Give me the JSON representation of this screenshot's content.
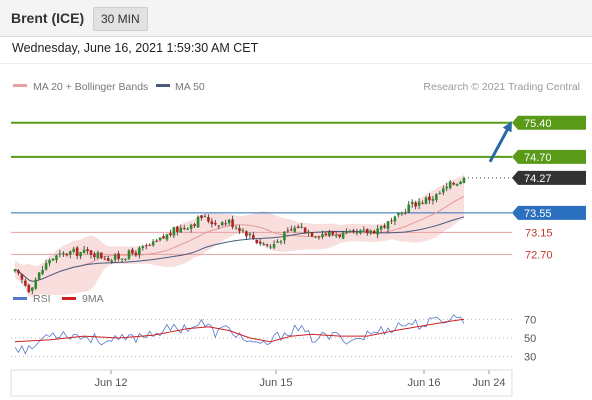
{
  "header": {
    "title": "Brent (ICE)",
    "interval": "30 MIN"
  },
  "datetime": "Wednesday, June 16, 2021 1:59:30 AM CET",
  "chart_data": [
    {
      "type": "candlestick",
      "legend": [
        {
          "label": "MA 20 + Bollinger Bands",
          "color": "#e8a1a1"
        },
        {
          "label": "MA 50",
          "color": "#4a5a7c"
        }
      ],
      "copyright": "Research © 2021 Trading Central",
      "x_tick_labels": [
        "Jun 12",
        "Jun 15",
        "Jun 16",
        "Jun 24"
      ],
      "levels": [
        {
          "value": 75.4,
          "label": "75.40",
          "color": "#5a9a19",
          "style": "solid"
        },
        {
          "value": 74.7,
          "label": "74.70",
          "color": "#5a9a19",
          "style": "solid"
        },
        {
          "value": 74.27,
          "label": "74.27",
          "color": "#333333",
          "style": "dotted"
        },
        {
          "value": 73.55,
          "label": "73.55",
          "color": "#2b6fbf",
          "style": "solid"
        },
        {
          "value": 73.15,
          "label": "73.15",
          "color": "#e6a0a0",
          "style": "solid"
        },
        {
          "value": 72.7,
          "label": "72.70",
          "color": "#e6a0a0",
          "style": "solid"
        }
      ],
      "last_price": 74.27,
      "ylim": [
        72.05,
        75.95
      ],
      "price_anchors": [
        [
          0,
          72.33
        ],
        [
          4,
          71.99
        ],
        [
          10,
          72.6
        ],
        [
          16,
          72.74
        ],
        [
          22,
          72.74
        ],
        [
          28,
          72.6
        ],
        [
          34,
          72.72
        ],
        [
          40,
          72.9
        ],
        [
          46,
          73.18
        ],
        [
          52,
          73.36
        ],
        [
          54,
          73.47
        ],
        [
          58,
          73.34
        ],
        [
          62,
          73.37
        ],
        [
          66,
          73.2
        ],
        [
          70,
          72.98
        ],
        [
          74,
          72.86
        ],
        [
          78,
          73.1
        ],
        [
          82,
          73.28
        ],
        [
          86,
          73.14
        ],
        [
          92,
          73.12
        ],
        [
          98,
          73.1
        ],
        [
          104,
          73.2
        ],
        [
          110,
          73.4
        ],
        [
          114,
          73.7
        ],
        [
          118,
          73.8
        ],
        [
          122,
          73.9
        ],
        [
          126,
          74.12
        ],
        [
          130,
          74.27
        ]
      ],
      "target_arrow": {
        "from": 74.27,
        "to": 75.4
      }
    },
    {
      "type": "line",
      "legend": [
        {
          "label": "RSI",
          "color": "#5577cc"
        },
        {
          "label": "9MA",
          "color": "#cc2222"
        }
      ],
      "y_tick_labels": [
        70,
        50,
        30
      ],
      "ylim": [
        20,
        80
      ],
      "rsi_anchors": [
        [
          0,
          42
        ],
        [
          4,
          36
        ],
        [
          10,
          56
        ],
        [
          16,
          54
        ],
        [
          22,
          50
        ],
        [
          28,
          46
        ],
        [
          34,
          50
        ],
        [
          40,
          56
        ],
        [
          46,
          60
        ],
        [
          52,
          63
        ],
        [
          54,
          66
        ],
        [
          58,
          56
        ],
        [
          62,
          60
        ],
        [
          66,
          50
        ],
        [
          70,
          40
        ],
        [
          74,
          46
        ],
        [
          78,
          56
        ],
        [
          82,
          60
        ],
        [
          86,
          50
        ],
        [
          92,
          52
        ],
        [
          98,
          48
        ],
        [
          104,
          56
        ],
        [
          110,
          62
        ],
        [
          114,
          66
        ],
        [
          118,
          64
        ],
        [
          122,
          68
        ],
        [
          126,
          72
        ],
        [
          130,
          71
        ]
      ],
      "ma_anchors": [
        [
          0,
          46
        ],
        [
          10,
          48
        ],
        [
          20,
          52
        ],
        [
          30,
          50
        ],
        [
          40,
          53
        ],
        [
          50,
          60
        ],
        [
          56,
          62
        ],
        [
          62,
          58
        ],
        [
          68,
          50
        ],
        [
          74,
          46
        ],
        [
          80,
          52
        ],
        [
          86,
          54
        ],
        [
          94,
          52
        ],
        [
          102,
          52
        ],
        [
          110,
          58
        ],
        [
          118,
          63
        ],
        [
          126,
          68
        ],
        [
          130,
          70
        ]
      ]
    }
  ]
}
